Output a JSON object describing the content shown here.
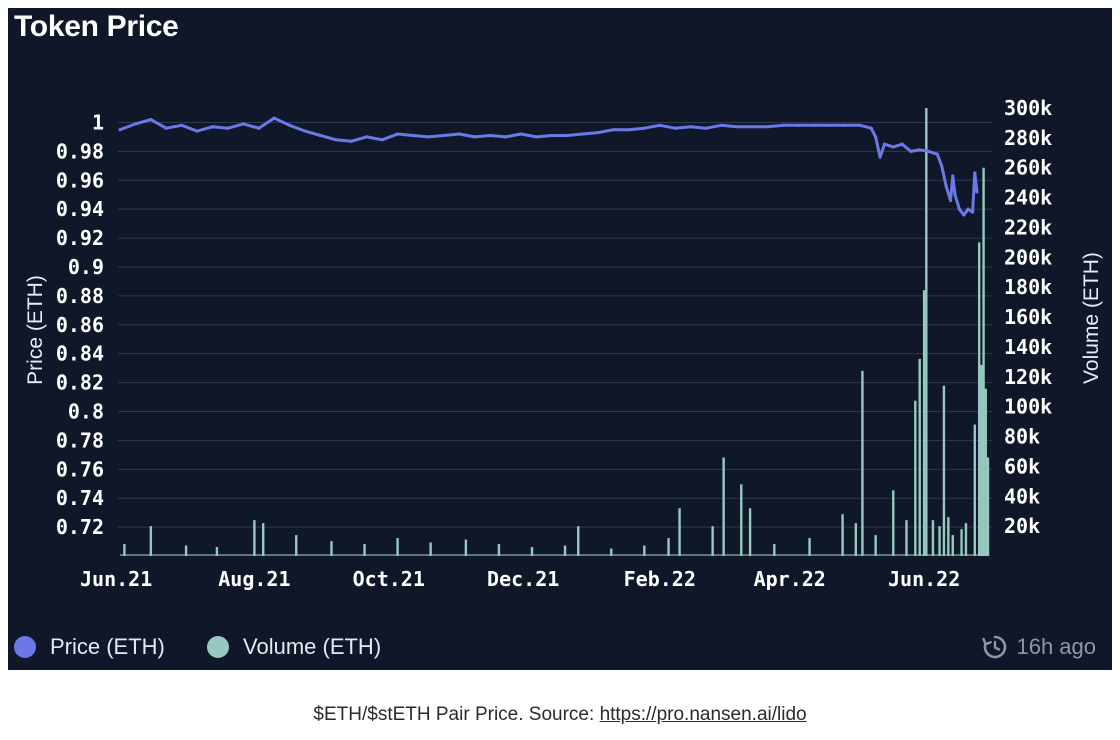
{
  "header": {
    "title": "Token Price"
  },
  "legend": {
    "items": [
      {
        "label": "Price (ETH)",
        "color": "#6c78e6"
      },
      {
        "label": "Volume (ETH)",
        "color": "#97c9c0"
      }
    ],
    "updated_text": "16h ago",
    "updated_icon": "refresh-clock-icon"
  },
  "caption": {
    "text": "$ETH/$stETH Pair Price. Source: ",
    "link": "https://pro.nansen.ai/lido"
  },
  "colors": {
    "background": "#0f1728",
    "grid": "#2e3850",
    "price": "#6c78e6",
    "volume": "#97c9c0"
  },
  "chart_data": {
    "type": "line",
    "title": "Token Price",
    "ylabel": "Price (ETH)",
    "y2label": "Volume (ETH)",
    "ylim": [
      0.7,
      1.01
    ],
    "y2lim": [
      0,
      300000
    ],
    "yticks": [
      "1",
      "0.98",
      "0.96",
      "0.94",
      "0.92",
      "0.9",
      "0.88",
      "0.86",
      "0.84",
      "0.82",
      "0.8",
      "0.78",
      "0.76",
      "0.74",
      "0.72"
    ],
    "y2ticks": [
      "300k",
      "280k",
      "260k",
      "240k",
      "220k",
      "200k",
      "180k",
      "160k",
      "140k",
      "120k",
      "100k",
      "80k",
      "60k",
      "40k",
      "20k"
    ],
    "x_ticks": [
      "Jun.21",
      "Aug.21",
      "Oct.21",
      "Dec.21",
      "Feb.22",
      "Apr.22",
      "Jun.22"
    ],
    "x_tick_dates": [
      "2021-06-01",
      "2021-08-01",
      "2021-10-01",
      "2021-12-01",
      "2022-02-01",
      "2022-04-01",
      "2022-06-01"
    ],
    "grid": true,
    "legend_position": "bottom-left",
    "series": [
      {
        "name": "Price (ETH)",
        "axis": "left",
        "points": [
          [
            "2021-06-01",
            0.995
          ],
          [
            "2021-06-08",
            0.999
          ],
          [
            "2021-06-15",
            1.002
          ],
          [
            "2021-06-22",
            0.996
          ],
          [
            "2021-06-29",
            0.998
          ],
          [
            "2021-07-06",
            0.994
          ],
          [
            "2021-07-13",
            0.997
          ],
          [
            "2021-07-20",
            0.996
          ],
          [
            "2021-07-27",
            0.999
          ],
          [
            "2021-08-03",
            0.996
          ],
          [
            "2021-08-10",
            1.003
          ],
          [
            "2021-08-17",
            0.998
          ],
          [
            "2021-08-24",
            0.994
          ],
          [
            "2021-08-31",
            0.991
          ],
          [
            "2021-09-07",
            0.988
          ],
          [
            "2021-09-14",
            0.987
          ],
          [
            "2021-09-21",
            0.99
          ],
          [
            "2021-09-28",
            0.988
          ],
          [
            "2021-10-05",
            0.992
          ],
          [
            "2021-10-12",
            0.991
          ],
          [
            "2021-10-19",
            0.99
          ],
          [
            "2021-10-26",
            0.991
          ],
          [
            "2021-11-02",
            0.992
          ],
          [
            "2021-11-09",
            0.99
          ],
          [
            "2021-11-16",
            0.991
          ],
          [
            "2021-11-23",
            0.99
          ],
          [
            "2021-11-30",
            0.992
          ],
          [
            "2021-12-07",
            0.99
          ],
          [
            "2021-12-14",
            0.991
          ],
          [
            "2021-12-21",
            0.991
          ],
          [
            "2021-12-28",
            0.992
          ],
          [
            "2022-01-04",
            0.993
          ],
          [
            "2022-01-11",
            0.995
          ],
          [
            "2022-01-18",
            0.995
          ],
          [
            "2022-01-25",
            0.996
          ],
          [
            "2022-02-01",
            0.998
          ],
          [
            "2022-02-08",
            0.996
          ],
          [
            "2022-02-15",
            0.997
          ],
          [
            "2022-02-22",
            0.996
          ],
          [
            "2022-03-01",
            0.998
          ],
          [
            "2022-03-08",
            0.997
          ],
          [
            "2022-03-15",
            0.997
          ],
          [
            "2022-03-22",
            0.997
          ],
          [
            "2022-03-29",
            0.998
          ],
          [
            "2022-04-05",
            0.998
          ],
          [
            "2022-04-12",
            0.998
          ],
          [
            "2022-04-19",
            0.998
          ],
          [
            "2022-04-26",
            0.998
          ],
          [
            "2022-05-03",
            0.998
          ],
          [
            "2022-05-08",
            0.996
          ],
          [
            "2022-05-10",
            0.99
          ],
          [
            "2022-05-12",
            0.976
          ],
          [
            "2022-05-14",
            0.985
          ],
          [
            "2022-05-18",
            0.983
          ],
          [
            "2022-05-22",
            0.985
          ],
          [
            "2022-05-26",
            0.98
          ],
          [
            "2022-05-30",
            0.981
          ],
          [
            "2022-06-03",
            0.98
          ],
          [
            "2022-06-07",
            0.978
          ],
          [
            "2022-06-09",
            0.97
          ],
          [
            "2022-06-11",
            0.956
          ],
          [
            "2022-06-13",
            0.946
          ],
          [
            "2022-06-14",
            0.963
          ],
          [
            "2022-06-15",
            0.95
          ],
          [
            "2022-06-17",
            0.94
          ],
          [
            "2022-06-19",
            0.936
          ],
          [
            "2022-06-21",
            0.94
          ],
          [
            "2022-06-23",
            0.938
          ],
          [
            "2022-06-24",
            0.965
          ],
          [
            "2022-06-25",
            0.952
          ]
        ]
      },
      {
        "name": "Volume (ETH)",
        "axis": "right",
        "type": "bar",
        "points": [
          [
            "2021-06-03",
            8000
          ],
          [
            "2021-06-15",
            20000
          ],
          [
            "2021-07-01",
            7000
          ],
          [
            "2021-07-15",
            6000
          ],
          [
            "2021-08-01",
            24000
          ],
          [
            "2021-08-05",
            22000
          ],
          [
            "2021-08-20",
            14000
          ],
          [
            "2021-09-05",
            10000
          ],
          [
            "2021-09-20",
            8000
          ],
          [
            "2021-10-05",
            12000
          ],
          [
            "2021-10-20",
            9000
          ],
          [
            "2021-11-05",
            11000
          ],
          [
            "2021-11-20",
            8000
          ],
          [
            "2021-12-05",
            6000
          ],
          [
            "2021-12-20",
            7000
          ],
          [
            "2021-12-26",
            20000
          ],
          [
            "2022-01-10",
            5000
          ],
          [
            "2022-01-25",
            7000
          ],
          [
            "2022-02-05",
            12000
          ],
          [
            "2022-02-10",
            32000
          ],
          [
            "2022-02-25",
            20000
          ],
          [
            "2022-03-02",
            66000
          ],
          [
            "2022-03-10",
            48000
          ],
          [
            "2022-03-14",
            32000
          ],
          [
            "2022-03-25",
            8000
          ],
          [
            "2022-04-10",
            12000
          ],
          [
            "2022-04-25",
            28000
          ],
          [
            "2022-05-01",
            22000
          ],
          [
            "2022-05-04",
            124000
          ],
          [
            "2022-05-10",
            14000
          ],
          [
            "2022-05-18",
            44000
          ],
          [
            "2022-05-24",
            24000
          ],
          [
            "2022-05-28",
            104000
          ],
          [
            "2022-05-30",
            132000
          ],
          [
            "2022-06-01",
            178000
          ],
          [
            "2022-06-02",
            300000
          ],
          [
            "2022-06-05",
            24000
          ],
          [
            "2022-06-08",
            20000
          ],
          [
            "2022-06-10",
            114000
          ],
          [
            "2022-06-12",
            26000
          ],
          [
            "2022-06-14",
            14000
          ],
          [
            "2022-06-18",
            18000
          ],
          [
            "2022-06-20",
            22000
          ],
          [
            "2022-06-24",
            88000
          ],
          [
            "2022-06-26",
            210000
          ],
          [
            "2022-06-27",
            128000
          ],
          [
            "2022-06-28",
            260000
          ],
          [
            "2022-06-29",
            112000
          ],
          [
            "2022-06-30",
            66000
          ]
        ]
      }
    ]
  }
}
